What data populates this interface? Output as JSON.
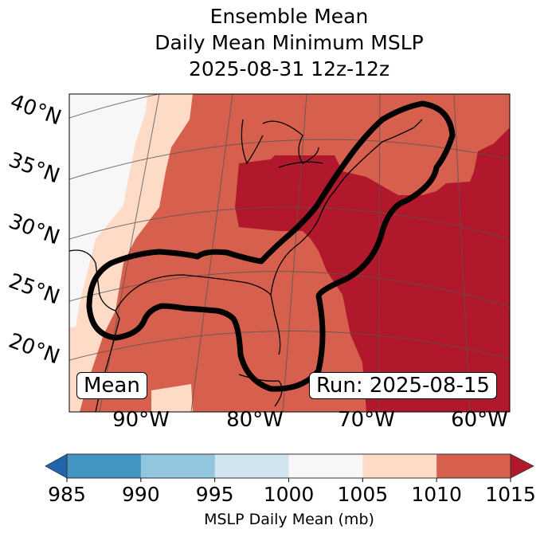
{
  "title": {
    "line1": "Ensemble Mean",
    "line2": "Daily Mean Minimum MSLP",
    "line3": "2025-08-31 12z-12z"
  },
  "map": {
    "lat_labels": [
      "40°N",
      "35°N",
      "30°N",
      "25°N",
      "20°N"
    ],
    "lon_labels": [
      "90°W",
      "80°W",
      "70°W",
      "60°W"
    ],
    "mean_label": "Mean",
    "run_label": "Run: 2025-08-15"
  },
  "colorbar": {
    "label": "MSLP Daily Mean (mb)",
    "ticks": [
      "985",
      "990",
      "995",
      "1000",
      "1005",
      "1010",
      "1015"
    ],
    "colors": [
      "#4393c3",
      "#92c5de",
      "#d1e5f0",
      "#f7f7f7",
      "#fddbc7",
      "#d6604d"
    ],
    "under_color": "#2166ac",
    "over_color": "#b2182b"
  },
  "chart_data": {
    "type": "heatmap",
    "title": "Ensemble Mean Daily Mean Minimum MSLP 2025-08-31 12z-12z",
    "colorbar_label": "MSLP Daily Mean (mb)",
    "levels": [
      985,
      990,
      995,
      1000,
      1005,
      1010,
      1015
    ],
    "extend": "both",
    "lat_range": [
      15,
      42
    ],
    "lon_range": [
      -95,
      -58
    ]
  }
}
